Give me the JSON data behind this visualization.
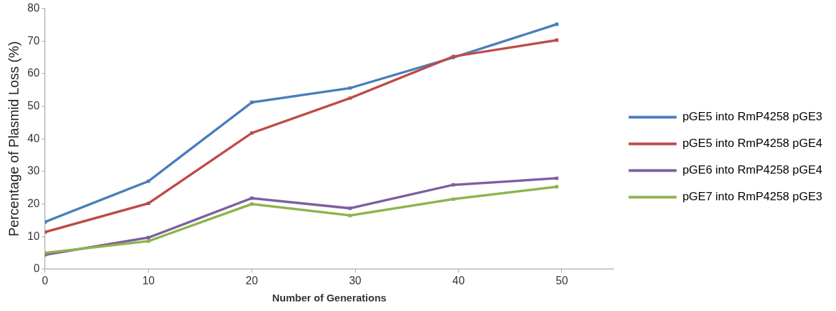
{
  "chart_data": {
    "type": "line",
    "xlabel": "Number of Generations",
    "ylabel": "Percentage of Plasmid Loss (%)",
    "x": [
      0,
      10,
      20,
      29.5,
      39.5,
      49.5
    ],
    "xlim": [
      0,
      55
    ],
    "xticks": [
      0,
      10,
      20,
      30,
      40,
      50
    ],
    "ylim": [
      0,
      80
    ],
    "yticks": [
      0,
      10,
      20,
      30,
      40,
      50,
      60,
      70,
      80
    ],
    "grid": false,
    "legend": "right",
    "marker": "square",
    "line_style": "solid",
    "series": [
      {
        "name": "pGE5 into RmP4258 pGE3",
        "color": "#4a7ebb",
        "values": [
          14.5,
          27,
          51.2,
          55.6,
          65,
          75.2
        ]
      },
      {
        "name": "pGE5 into RmP4258 pGE4",
        "color": "#be4b48",
        "values": [
          11.4,
          20.2,
          41.8,
          52.5,
          65.3,
          70.3
        ]
      },
      {
        "name": "pGE6 into RmP4258 pGE4",
        "color": "#7d5fa0",
        "values": [
          4.4,
          9.7,
          21.8,
          18.7,
          25.9,
          27.9
        ]
      },
      {
        "name": "pGE7 into RmP4258 pGE3",
        "color": "#8db44c",
        "values": [
          5,
          8.6,
          20,
          16.5,
          21.5,
          25.3
        ]
      }
    ]
  }
}
